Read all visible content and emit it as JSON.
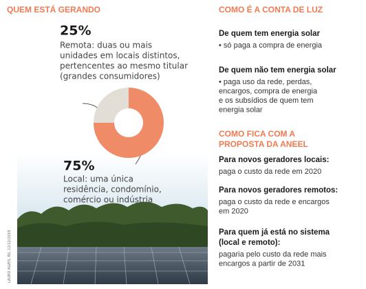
{
  "chart_data": {
    "type": "pie",
    "title": "QUEM ESTÁ GERANDO",
    "values": [
      25,
      75
    ],
    "value_labels": [
      "25%",
      "75%"
    ],
    "colors": [
      "#e2ddd5",
      "#f08b68"
    ],
    "descriptions": [
      [
        "Remota: duas ou mais",
        "unidades em locais distintos,",
        "pertencentes ao mesmo titular",
        "(grandes consumidores)"
      ],
      [
        "Local: uma única",
        "residência, condomínio,",
        "comércio ou indústria"
      ]
    ]
  },
  "photo_credit": "LAURO ALVES, RS, 12/12/2019",
  "bill": {
    "title": "COMO É A CONTA DE LUZ",
    "items": [
      {
        "heading": [
          "De quem tem energia solar"
        ],
        "lines": [
          "• só paga a compra de energia"
        ]
      },
      {
        "heading": [
          "De quem não tem energia solar"
        ],
        "lines": [
          "• paga uso da rede, perdas,",
          "encargos, compra de energia",
          "e os subsídios de quem tem",
          "energia solar"
        ]
      }
    ]
  },
  "proposal": {
    "title": [
      "COMO FICA COM A",
      "PROPOSTA DA ANEEL"
    ],
    "items": [
      {
        "heading": [
          "Para novos geradores locais:"
        ],
        "lines": [
          "paga o custo da rede em 2020"
        ]
      },
      {
        "heading": [
          "Para novos geradores remotos:"
        ],
        "lines": [
          "paga o custo da rede e encargos",
          "em 2020"
        ]
      },
      {
        "heading": [
          "Para quem já está no sistema",
          "(local e remoto):"
        ],
        "lines": [
          "pagaria pelo custo da rede mais",
          "encargos a partir de 2031"
        ]
      }
    ]
  }
}
